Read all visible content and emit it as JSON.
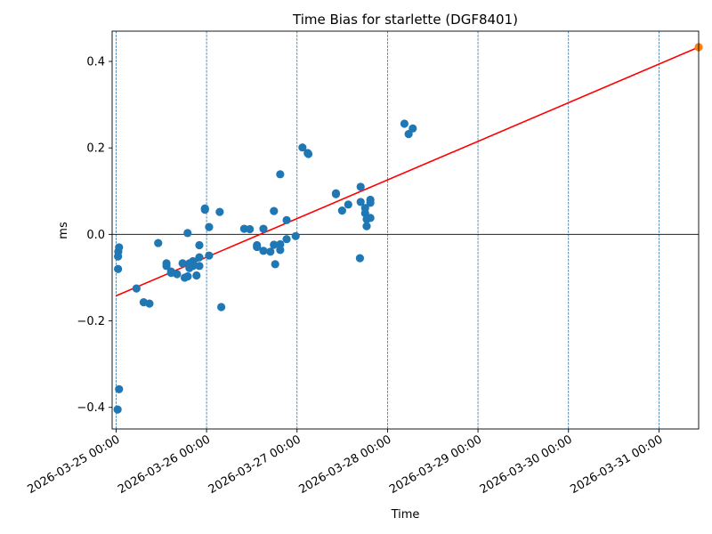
{
  "chart_data": {
    "type": "scatter",
    "title": "Time Bias for starlette (DGF8401)",
    "xlabel": "Time",
    "ylabel": "ms",
    "xlim": [
      "2026-03-24 22:57",
      "2026-03-31 10:32"
    ],
    "ylim": [
      -0.45,
      0.47
    ],
    "x_ticks": [
      "2026-03-25 00:00",
      "2026-03-26 00:00",
      "2026-03-27 00:00",
      "2026-03-28 00:00",
      "2026-03-29 00:00",
      "2026-03-30 00:00",
      "2026-03-31 00:00"
    ],
    "y_ticks": [
      -0.4,
      -0.2,
      0.0,
      0.2,
      0.4
    ],
    "y_tick_labels": [
      "−0.4",
      "−0.2",
      "0.0",
      "0.2",
      "0.4"
    ],
    "grid": "vertical dashed at date ticks",
    "zero_line": 0,
    "colors": {
      "points": "#1f77b4",
      "fit": "#ff0000",
      "prediction": "#ff7f0e",
      "grid": "#1f77b4"
    },
    "series": [
      {
        "points": [
          {
            "x": "2026-03-25 00:24",
            "y": -0.405
          },
          {
            "x": "2026-03-25 00:47",
            "y": -0.358
          },
          {
            "x": "2026-03-25 00:35",
            "y": -0.04
          },
          {
            "x": "2026-03-25 00:47",
            "y": -0.03
          },
          {
            "x": "2026-03-25 00:31",
            "y": -0.051
          },
          {
            "x": "2026-03-25 00:31",
            "y": -0.08
          },
          {
            "x": "2026-03-25 05:24",
            "y": -0.125
          },
          {
            "x": "2026-03-25 07:19",
            "y": -0.157
          },
          {
            "x": "2026-03-25 08:51",
            "y": -0.16
          },
          {
            "x": "2026-03-25 11:10",
            "y": -0.02
          },
          {
            "x": "2026-03-25 13:22",
            "y": -0.067
          },
          {
            "x": "2026-03-25 13:22",
            "y": -0.073
          },
          {
            "x": "2026-03-25 14:36",
            "y": -0.086
          },
          {
            "x": "2026-03-25 14:36",
            "y": -0.089
          },
          {
            "x": "2026-03-25 16:10",
            "y": -0.092
          },
          {
            "x": "2026-03-25 17:38",
            "y": -0.067
          },
          {
            "x": "2026-03-25 18:12",
            "y": -0.1
          },
          {
            "x": "2026-03-25 19:00",
            "y": -0.097
          },
          {
            "x": "2026-03-25 19:27",
            "y": -0.067
          },
          {
            "x": "2026-03-25 19:27",
            "y": -0.078
          },
          {
            "x": "2026-03-25 20:23",
            "y": -0.062
          },
          {
            "x": "2026-03-25 20:23",
            "y": -0.073
          },
          {
            "x": "2026-03-25 21:20",
            "y": -0.095
          },
          {
            "x": "2026-03-25 22:05",
            "y": -0.053
          },
          {
            "x": "2026-03-25 22:05",
            "y": -0.073
          },
          {
            "x": "2026-03-25 22:05",
            "y": -0.025
          },
          {
            "x": "2026-03-25 18:58",
            "y": 0.003
          },
          {
            "x": "2026-03-25 23:34",
            "y": 0.06
          },
          {
            "x": "2026-03-25 23:34",
            "y": 0.057
          },
          {
            "x": "2026-03-26 00:40",
            "y": 0.017
          },
          {
            "x": "2026-03-26 00:40",
            "y": -0.049
          },
          {
            "x": "2026-03-26 03:29",
            "y": 0.052
          },
          {
            "x": "2026-03-26 03:54",
            "y": -0.168
          },
          {
            "x": "2026-03-26 09:59",
            "y": 0.013
          },
          {
            "x": "2026-03-26 11:28",
            "y": 0.012
          },
          {
            "x": "2026-03-26 13:22",
            "y": -0.025
          },
          {
            "x": "2026-03-26 13:22",
            "y": -0.029
          },
          {
            "x": "2026-03-26 15:05",
            "y": 0.013
          },
          {
            "x": "2026-03-26 15:05",
            "y": -0.038
          },
          {
            "x": "2026-03-26 16:56",
            "y": -0.04
          },
          {
            "x": "2026-03-26 17:52",
            "y": 0.054
          },
          {
            "x": "2026-03-26 17:52",
            "y": -0.024
          },
          {
            "x": "2026-03-26 18:12",
            "y": -0.069
          },
          {
            "x": "2026-03-26 19:32",
            "y": 0.139
          },
          {
            "x": "2026-03-26 19:32",
            "y": -0.036
          },
          {
            "x": "2026-03-26 19:32",
            "y": -0.023
          },
          {
            "x": "2026-03-26 21:14",
            "y": -0.011
          },
          {
            "x": "2026-03-26 21:14",
            "y": 0.033
          },
          {
            "x": "2026-03-26 23:38",
            "y": -0.004
          },
          {
            "x": "2026-03-27 01:26",
            "y": 0.201
          },
          {
            "x": "2026-03-27 02:50",
            "y": 0.188
          },
          {
            "x": "2026-03-27 03:01",
            "y": 0.186
          },
          {
            "x": "2026-03-27 10:19",
            "y": 0.095
          },
          {
            "x": "2026-03-27 10:19",
            "y": 0.093
          },
          {
            "x": "2026-03-27 11:57",
            "y": 0.055
          },
          {
            "x": "2026-03-27 13:35",
            "y": 0.069
          },
          {
            "x": "2026-03-27 16:52",
            "y": 0.11
          },
          {
            "x": "2026-03-27 16:52",
            "y": 0.075
          },
          {
            "x": "2026-03-27 16:41",
            "y": -0.055
          },
          {
            "x": "2026-03-27 18:04",
            "y": 0.061
          },
          {
            "x": "2026-03-27 18:04",
            "y": 0.049
          },
          {
            "x": "2026-03-27 18:28",
            "y": 0.035
          },
          {
            "x": "2026-03-27 18:28",
            "y": 0.019
          },
          {
            "x": "2026-03-27 19:27",
            "y": 0.08
          },
          {
            "x": "2026-03-27 19:27",
            "y": 0.073
          },
          {
            "x": "2026-03-27 19:27",
            "y": 0.038
          },
          {
            "x": "2026-03-28 04:29",
            "y": 0.256
          },
          {
            "x": "2026-03-28 05:36",
            "y": 0.232
          },
          {
            "x": "2026-03-28 06:42",
            "y": 0.245
          }
        ]
      }
    ],
    "fit_line": {
      "x": [
        "2026-03-25 00:00",
        "2026-03-31 10:32"
      ],
      "y": [
        -0.142,
        0.433
      ]
    },
    "prediction_point": {
      "x": "2026-03-31 10:32",
      "y": 0.433
    }
  }
}
